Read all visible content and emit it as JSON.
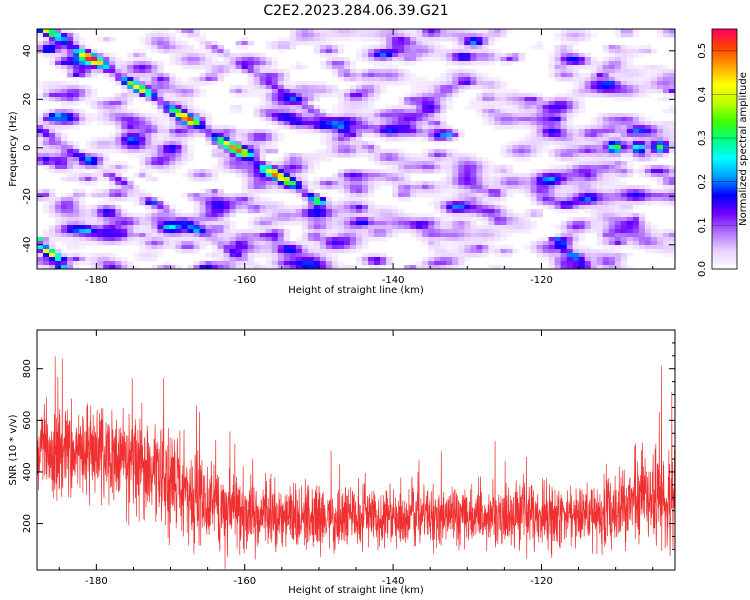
{
  "title": "C2E2.2023.284.06.39.G21",
  "chart_data": [
    {
      "type": "heatmap",
      "xlabel": "Height of straight line (km)",
      "ylabel": "Frequency (Hz)",
      "xlim": [
        -188,
        -102
      ],
      "ylim": [
        -50,
        49
      ],
      "xticks": [
        -180,
        -160,
        -140,
        -120
      ],
      "yticks": [
        -40,
        -20,
        0,
        20,
        40
      ],
      "colorbar": {
        "label": "Normalized spectral amplitude",
        "range": [
          0,
          0.55
        ],
        "ticks": [
          0.0,
          0.1,
          0.2,
          0.3,
          0.4,
          0.5
        ],
        "colors": [
          "#ffffff",
          "#e8d0ff",
          "#b070ff",
          "#7000ff",
          "#0000ff",
          "#00a0ff",
          "#00ffff",
          "#00ff80",
          "#40ff00",
          "#c0ff00",
          "#ffff00",
          "#ffa000",
          "#ff4000",
          "#ff0060"
        ]
      },
      "ridges": [
        {
          "x0": -187,
          "y0": 49,
          "x1": -150,
          "y1": -22,
          "peak": 0.42
        },
        {
          "x0": -188,
          "y0": -38,
          "x1": -184,
          "y1": -50,
          "peak": 0.45
        },
        {
          "x0": -188,
          "y0": 8,
          "x1": -158,
          "y1": -50,
          "peak": 0.12
        },
        {
          "x0": -168,
          "y0": 49,
          "x1": -143,
          "y1": 0,
          "peak": 0.1
        },
        {
          "x0": -118,
          "y0": -38,
          "x1": -114,
          "y1": -50,
          "peak": 0.15
        }
      ],
      "blob": {
        "x0": -111,
        "x1": -103,
        "y": 0,
        "peak": 0.27
      }
    },
    {
      "type": "line",
      "xlabel": "Height of straight line (km)",
      "ylabel": "SNR (10 * v/v)",
      "xlim": [
        -188,
        -102
      ],
      "ylim": [
        20,
        950
      ],
      "xticks": [
        -180,
        -160,
        -140,
        -120
      ],
      "yticks": [
        200,
        400,
        600,
        800
      ],
      "series": [
        {
          "color": "#f03030",
          "profile": [
            [
              -188,
              500,
              150
            ],
            [
              -178,
              470,
              170
            ],
            [
              -170,
              380,
              190
            ],
            [
              -165,
              260,
              150
            ],
            [
              -150,
              220,
              110
            ],
            [
              -130,
              230,
              110
            ],
            [
              -112,
              230,
              120
            ],
            [
              -106,
              320,
              170
            ],
            [
              -102,
              250,
              150
            ]
          ]
        }
      ]
    }
  ]
}
